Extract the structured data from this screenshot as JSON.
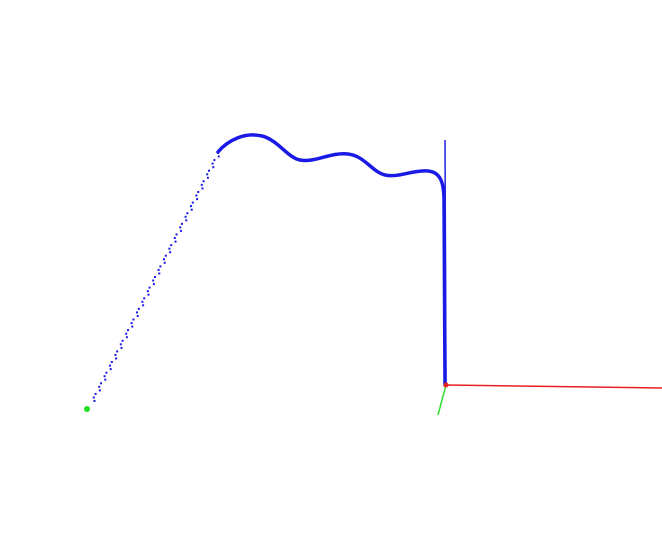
{
  "viewport": {
    "background": "#ffffff"
  },
  "colors": {
    "trajectory": "#1a1ae6",
    "x_axis": "#e62020",
    "y_axis": "#33dd33",
    "z_axis": "#2222dd",
    "origin": "#e62020",
    "start_point": "#22dd22"
  },
  "axes": {
    "labels_visible": false
  }
}
